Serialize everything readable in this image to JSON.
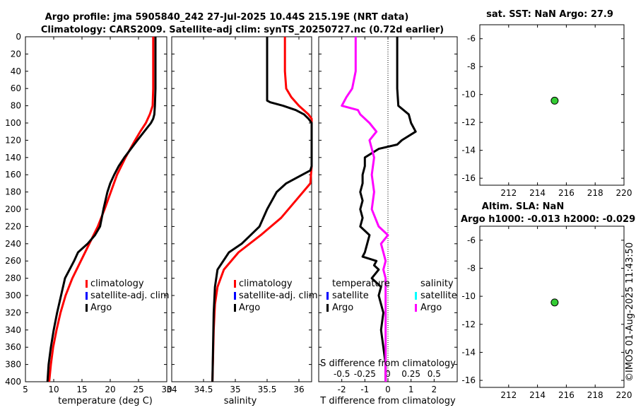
{
  "header": {
    "title_line1": "Argo profile: jma 5905840_242 27-Jul-2025 10.44S 215.19E (NRT data)",
    "title_line2": "Climatology: CARS2009. Satellite-adj clim: synTS_20250727.nc (0.72d earlier)"
  },
  "colors": {
    "climatology": "#ff0000",
    "satellite": "#0000ff",
    "argo": "#000000",
    "sal_satellite": "#00ffff",
    "sal_argo": "#ff00ff",
    "marker_fill": "#33cc33"
  },
  "legend": {
    "climatology": "climatology",
    "satellite_adj": "satellite-adj. clim",
    "argo": "Argo",
    "temperature_header": "temperature",
    "salinity_header": "salinity",
    "satellite": "satellite"
  },
  "credit": "©IMOS 01-Aug-2025 11:43:50",
  "chart_data": [
    {
      "id": "temperature",
      "type": "line",
      "xlabel": "temperature (deg C)",
      "ylabel": "",
      "xlim": [
        5,
        30
      ],
      "ylim": [
        400,
        0
      ],
      "xticks": [
        5,
        10,
        15,
        20,
        25,
        30
      ],
      "yticks": [
        0,
        20,
        40,
        60,
        80,
        100,
        120,
        140,
        160,
        180,
        200,
        220,
        240,
        260,
        280,
        300,
        320,
        340,
        360,
        380,
        400
      ],
      "series": [
        {
          "name": "climatology",
          "color": "#ff0000",
          "y": [
            0,
            20,
            40,
            60,
            80,
            90,
            100,
            110,
            120,
            140,
            160,
            180,
            200,
            220,
            240,
            260,
            280,
            300,
            320,
            340,
            360,
            380,
            400
          ],
          "x": [
            27.6,
            27.6,
            27.6,
            27.6,
            27.5,
            27.0,
            26.3,
            25.3,
            24.4,
            22.7,
            21.2,
            20.1,
            19.0,
            17.8,
            16.3,
            14.8,
            13.3,
            12.1,
            11.2,
            10.5,
            9.9,
            9.5,
            9.2
          ]
        },
        {
          "name": "Argo",
          "color": "#000000",
          "y": [
            0,
            20,
            40,
            60,
            80,
            90,
            95,
            100,
            110,
            120,
            140,
            150,
            160,
            170,
            180,
            200,
            220,
            230,
            240,
            250,
            260,
            270,
            280,
            300,
            320,
            340,
            360,
            380,
            400
          ],
          "x": [
            28.0,
            28.0,
            28.0,
            28.0,
            27.9,
            27.8,
            27.6,
            27.2,
            26.0,
            24.8,
            22.5,
            21.5,
            20.7,
            20.0,
            19.5,
            18.8,
            18.2,
            17.3,
            16.0,
            14.3,
            13.6,
            12.8,
            12.0,
            11.3,
            10.6,
            10.0,
            9.5,
            9.1,
            8.9
          ]
        }
      ]
    },
    {
      "id": "salinity",
      "type": "line",
      "xlabel": "salinity",
      "xlim": [
        34,
        36.2
      ],
      "ylim": [
        400,
        0
      ],
      "xticks": [
        34,
        34.5,
        35,
        35.5,
        36
      ],
      "xticklabels": [
        "34",
        "34.5",
        "35",
        "35.5",
        "36"
      ],
      "series": [
        {
          "name": "climatology",
          "color": "#ff0000",
          "y": [
            0,
            20,
            40,
            60,
            70,
            80,
            90,
            95,
            150,
            170,
            190,
            210,
            230,
            250,
            270,
            290,
            310,
            340,
            370,
            400
          ],
          "x": [
            35.78,
            35.78,
            35.78,
            35.8,
            35.88,
            36.0,
            36.15,
            36.2,
            36.2,
            36.18,
            35.95,
            35.72,
            35.4,
            35.05,
            34.82,
            34.72,
            34.68,
            34.66,
            34.65,
            34.64
          ]
        },
        {
          "name": "Argo",
          "color": "#000000",
          "y": [
            0,
            20,
            40,
            60,
            74,
            76,
            80,
            85,
            90,
            95,
            100,
            150,
            155,
            170,
            180,
            200,
            220,
            240,
            250,
            270,
            290,
            320,
            360,
            400
          ],
          "x": [
            35.5,
            35.5,
            35.5,
            35.5,
            35.5,
            35.55,
            35.75,
            35.95,
            36.08,
            36.15,
            36.2,
            36.2,
            36.18,
            35.8,
            35.65,
            35.5,
            35.38,
            35.1,
            34.9,
            34.72,
            34.68,
            34.66,
            34.65,
            34.64
          ]
        }
      ]
    },
    {
      "id": "difference",
      "type": "line",
      "xlabel": "T difference from climatology",
      "top_label": "S difference from climatology",
      "xlim": [
        -3,
        3
      ],
      "ylim": [
        400,
        0
      ],
      "xticks": [
        -2,
        -1,
        0,
        1,
        2
      ],
      "top_xticklabels": [
        "-0.5",
        "-0.25",
        "0",
        "0.25",
        "0.5"
      ],
      "series": [
        {
          "name": "Argo temperature",
          "color": "#000000",
          "y": [
            0,
            60,
            80,
            90,
            100,
            110,
            120,
            125,
            130,
            140,
            150,
            160,
            170,
            180,
            190,
            200,
            210,
            220,
            230,
            240,
            250,
            255,
            260,
            265,
            270,
            280,
            290,
            300,
            320,
            340,
            360,
            380,
            400
          ],
          "x": [
            0.4,
            0.4,
            0.45,
            0.9,
            1.0,
            1.2,
            0.6,
            0.4,
            -0.4,
            -1.0,
            -1.0,
            -1.1,
            -1.1,
            -1.2,
            -1.1,
            -1.2,
            -1.1,
            -1.2,
            -0.8,
            -0.9,
            -1.0,
            -1.1,
            -0.5,
            -0.6,
            -0.4,
            -0.7,
            -0.3,
            -0.4,
            -0.2,
            -0.3,
            -0.2,
            -0.1,
            -0.1
          ]
        },
        {
          "name": "Argo salinity",
          "color": "#ff00ff",
          "y": [
            0,
            20,
            40,
            60,
            70,
            80,
            85,
            90,
            100,
            110,
            120,
            140,
            160,
            180,
            200,
            220,
            230,
            240,
            250,
            260,
            270,
            280,
            300,
            320,
            340,
            360,
            380,
            400
          ],
          "x": [
            -1.4,
            -1.4,
            -1.4,
            -1.55,
            -1.8,
            -2.0,
            -1.3,
            -1.2,
            -0.8,
            -0.5,
            -0.8,
            -0.6,
            -0.7,
            -0.6,
            -0.7,
            -0.4,
            0.0,
            -0.3,
            -0.2,
            -0.1,
            -0.2,
            -0.1,
            -0.1,
            -0.1,
            -0.1,
            -0.1,
            -0.1,
            -0.1
          ]
        }
      ]
    },
    {
      "id": "sst-map",
      "type": "scatter",
      "title": "sat. SST: NaN Argo: 27.9",
      "xlim": [
        210,
        220
      ],
      "ylim": [
        -16.5,
        -5
      ],
      "xticks": [
        212,
        214,
        216,
        218,
        220
      ],
      "yticks": [
        -6,
        -8,
        -10,
        -12,
        -14,
        -16
      ],
      "points": [
        {
          "x": 215.19,
          "y": -10.44
        }
      ]
    },
    {
      "id": "sla-map",
      "type": "scatter",
      "title_line1": "Altim. SLA: NaN",
      "title_line2": "Argo h1000: -0.013 h2000: -0.029",
      "xlim": [
        210,
        220
      ],
      "ylim": [
        -16.5,
        -5
      ],
      "xticks": [
        212,
        214,
        216,
        218,
        220
      ],
      "yticks": [
        -6,
        -8,
        -10,
        -12,
        -14,
        -16
      ],
      "points": [
        {
          "x": 215.19,
          "y": -10.44
        }
      ]
    }
  ]
}
